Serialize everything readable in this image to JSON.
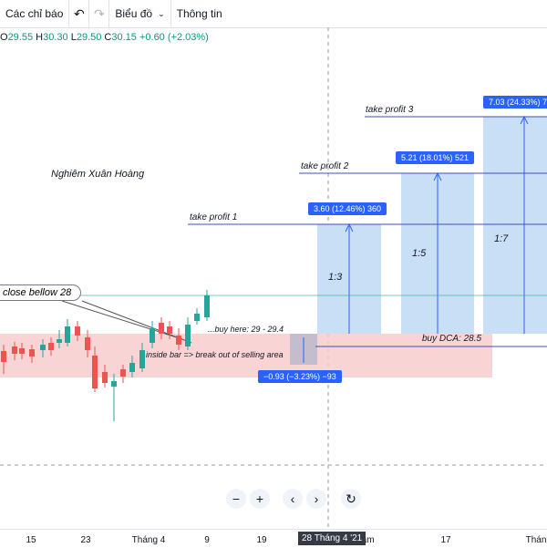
{
  "toolbar": {
    "indicators_label": "Các chỉ báo",
    "undo_icon": "undo-icon",
    "redo_icon": "redo-icon",
    "chart_type_label": "Biểu đồ",
    "info_label": "Thông tin"
  },
  "ohlc": {
    "o_label": "O",
    "o_value": "29.55",
    "h_label": "H",
    "h_value": "30.30",
    "l_label": "L",
    "l_value": "29.50",
    "c_label": "C",
    "c_value": "30.15",
    "change": "+0.60 (+2.03%)"
  },
  "annotations": {
    "author": "Nghiêm Xuân Hoàng",
    "close_below": "close bellow 28",
    "buy_here": "...buy here: 29 - 29.4",
    "inside_bar": "inside bar => break out of selling area",
    "tp1": "take profit 1",
    "tp2": "take profit 2",
    "tp3": "take profit 3",
    "buy_dca": "buy DCA: 28.5",
    "ratio1": "1:3",
    "ratio2": "1:5",
    "ratio3": "1:7"
  },
  "badges": {
    "tp1": "3.60 (12.46%) 360",
    "tp2": "5.21 (18.01%) 521",
    "tp3": "7.03 (24.33%) 7",
    "stop": "−0.93 (−3.23%) −93"
  },
  "axis": {
    "ticks": [
      "15",
      "23",
      "Tháng 4",
      "9",
      "19",
      "Năm",
      "17",
      "Thán"
    ],
    "crosshair": "28 Tháng 4 '21"
  },
  "nav": {
    "zoom_out": "−",
    "zoom_in": "+",
    "prev": "‹",
    "next": "›",
    "reset_icon": "reset-icon"
  },
  "colors": {
    "up": "#26a69a",
    "down": "#ef5350",
    "zone": "#f8c9c9",
    "profit": "#c9dff5",
    "accent": "#2962ff"
  }
}
